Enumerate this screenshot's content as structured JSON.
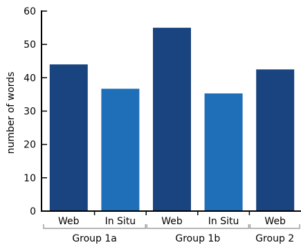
{
  "chart_data": {
    "type": "bar",
    "title": "",
    "xlabel": "",
    "ylabel": "number of words",
    "ylim": [
      0,
      60
    ],
    "yticks": [
      "0",
      "10",
      "20",
      "30",
      "40",
      "50",
      "60"
    ],
    "grid": false,
    "legend": "none",
    "categories": [
      "Web",
      "In Situ",
      "Web",
      "In Situ",
      "Web"
    ],
    "values": [
      44,
      36.7,
      55,
      35.3,
      42.5
    ],
    "groups": [
      {
        "label": "Group 1a",
        "bars": [
          0,
          1
        ]
      },
      {
        "label": "Group 1b",
        "bars": [
          2,
          3
        ]
      },
      {
        "label": "Group 2",
        "bars": [
          4
        ]
      }
    ],
    "colors": {
      "Web": "#1a4480",
      "In Situ": "#1f6fb8",
      "axis": "#000000",
      "group_bracket": "#9e9e9e"
    }
  }
}
